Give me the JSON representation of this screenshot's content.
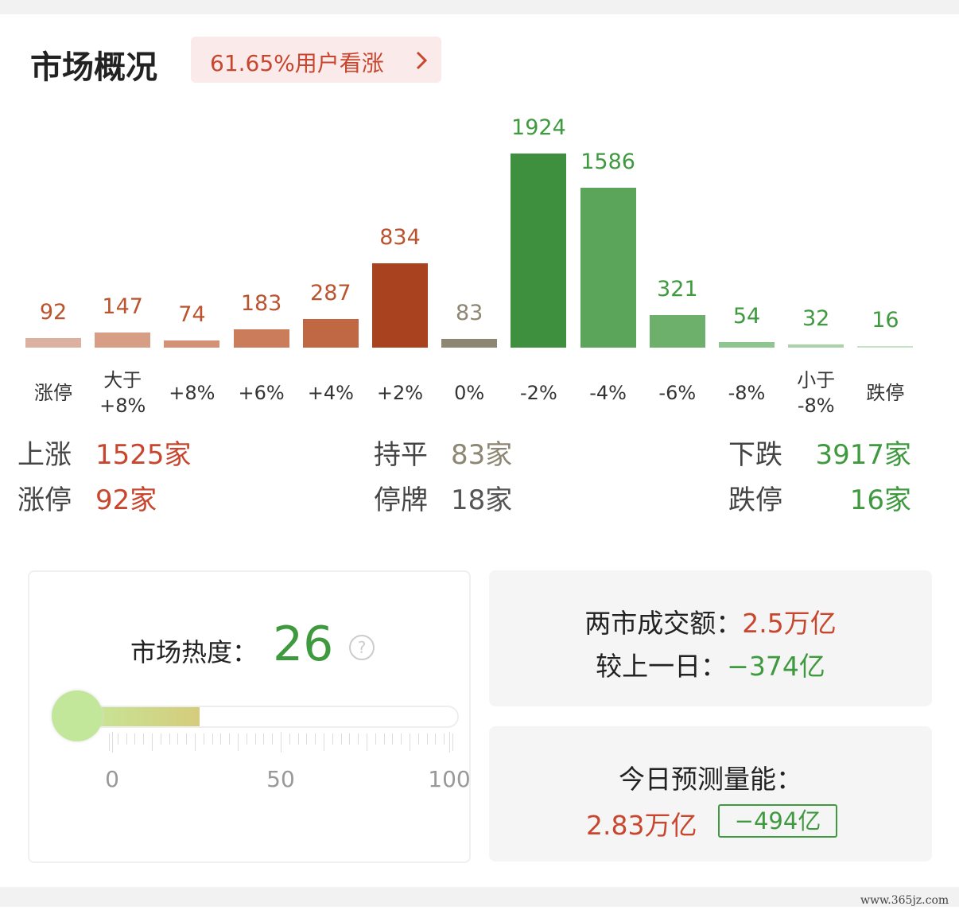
{
  "header": {
    "title": "市场概况",
    "badge": "61.65%用户看涨"
  },
  "chart_data": {
    "type": "bar",
    "categories": [
      "涨停",
      "大于\n+8%",
      "+8%",
      "+6%",
      "+4%",
      "+2%",
      "0%",
      "-2%",
      "-4%",
      "-6%",
      "-8%",
      "小于\n-8%",
      "跌停"
    ],
    "values": [
      92,
      147,
      74,
      183,
      287,
      834,
      83,
      1924,
      1586,
      321,
      54,
      32,
      16
    ],
    "colors": [
      "#ddb19f",
      "#d89d85",
      "#d39176",
      "#ca7c5b",
      "#c06843",
      "#a9421f",
      "#8c8672",
      "#3e903e",
      "#5ba55b",
      "#6cb06c",
      "#8fc58f",
      "#aad3aa",
      "#c4e2c4"
    ],
    "label_colors": [
      "#b9542f",
      "#b9542f",
      "#b9542f",
      "#b9542f",
      "#b9542f",
      "#b9542f",
      "#8c8672",
      "#3f9a3f",
      "#3f9a3f",
      "#3f9a3f",
      "#3f9a3f",
      "#3f9a3f",
      "#3f9a3f"
    ]
  },
  "summary": {
    "rows": [
      [
        {
          "label": "上涨",
          "value": "1525家"
        },
        {
          "label": "持平",
          "value": "83家"
        },
        {
          "label": "下跌",
          "value": "3917家"
        }
      ],
      [
        {
          "label": "涨停",
          "value": "92家"
        },
        {
          "label": "停牌",
          "value": "18家"
        },
        {
          "label": "跌停",
          "value": "16家"
        }
      ]
    ]
  },
  "heat": {
    "label": "市场热度：",
    "value": 26,
    "help": "?",
    "xlim": [
      0,
      100
    ],
    "ticks": [
      0,
      50,
      100
    ]
  },
  "volume": {
    "label": "两市成交额：",
    "value": "2.5万亿",
    "change_label": "较上一日：",
    "change": "−374亿"
  },
  "forecast": {
    "label": "今日预测量能：",
    "value": "2.83万亿",
    "change": "−494亿"
  },
  "watermark": "www.365jz.com"
}
